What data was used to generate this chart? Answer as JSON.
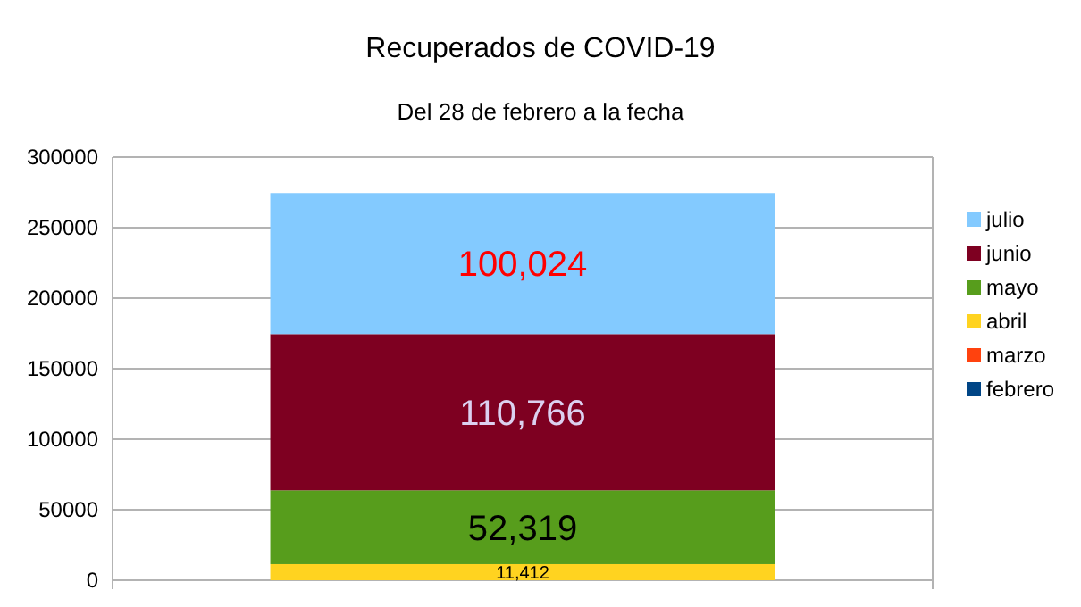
{
  "chart_data": {
    "type": "bar",
    "title": "Recuperados de COVID-19",
    "subtitle": "Del 28 de febrero a la fecha",
    "categories": [
      null
    ],
    "stacked": true,
    "series": [
      {
        "name": "febrero",
        "color": "#004586",
        "values": [
          0
        ]
      },
      {
        "name": "marzo",
        "color": "#ff420e",
        "values": [
          0
        ]
      },
      {
        "name": "abril",
        "color": "#ffd320",
        "values": [
          11412
        ],
        "value_labels": [
          "11,412"
        ]
      },
      {
        "name": "mayo",
        "color": "#579d1c",
        "values": [
          52319
        ],
        "value_labels": [
          "52,319"
        ]
      },
      {
        "name": "junio",
        "color": "#7e0021",
        "values": [
          110766
        ],
        "value_labels": [
          "110,766"
        ]
      },
      {
        "name": "julio",
        "color": "#83caff",
        "values": [
          100024
        ],
        "value_labels": [
          "100,024"
        ]
      }
    ],
    "ylim": [
      0,
      300000
    ],
    "yticks": [
      0,
      50000,
      100000,
      150000,
      200000,
      250000,
      300000
    ],
    "grid": "y",
    "legend": "right"
  }
}
